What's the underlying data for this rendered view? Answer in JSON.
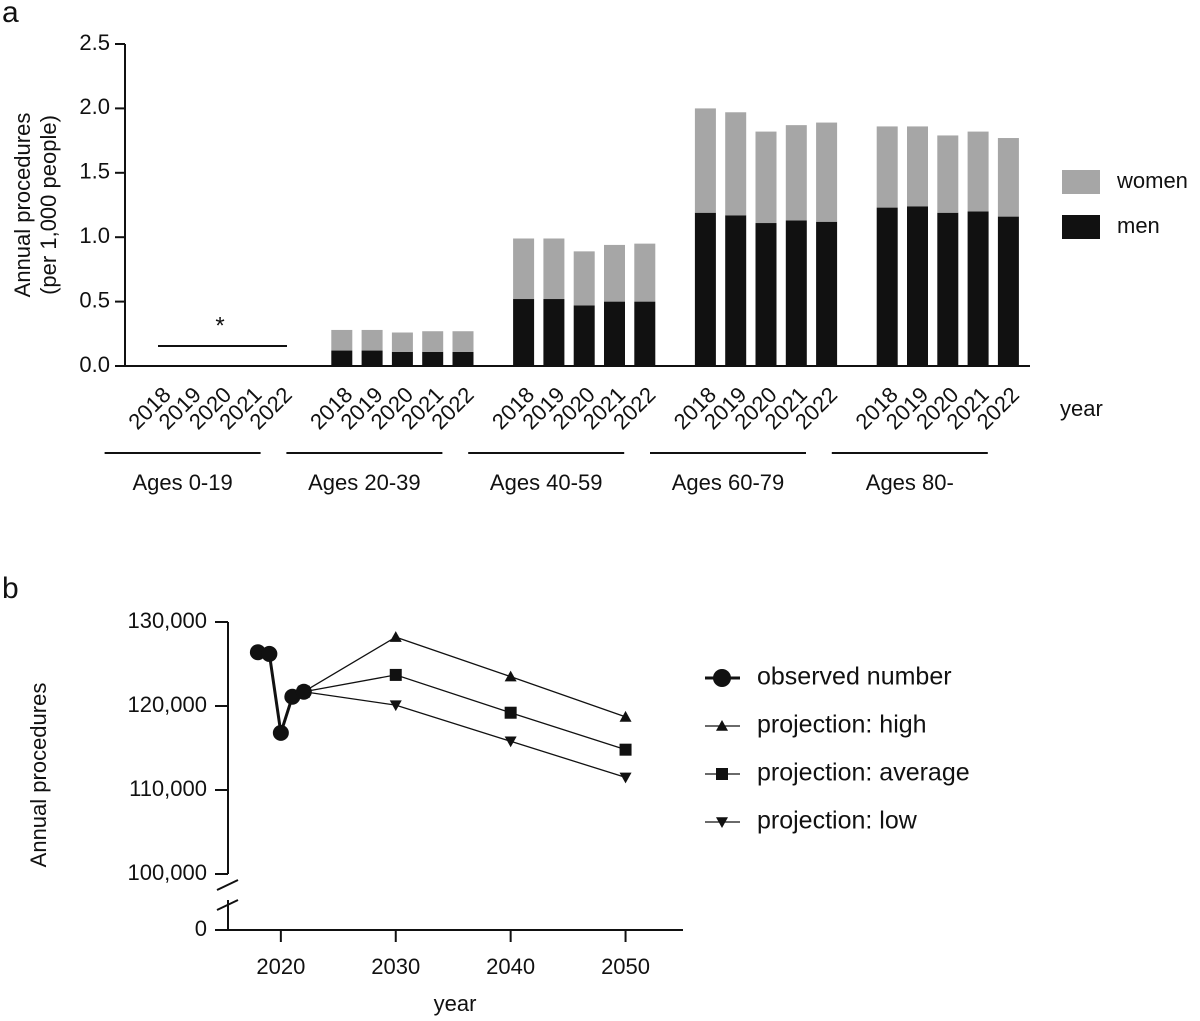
{
  "chart_data": [
    {
      "type": "stacked-bar",
      "panel": "a",
      "ylabel": [
        "Annual procedures",
        "(per 1,000 people)"
      ],
      "xlabel": "year",
      "annotation": "*",
      "categories": [
        "2018",
        "2019",
        "2020",
        "2021",
        "2022",
        "2018",
        "2019",
        "2020",
        "2021",
        "2022",
        "2018",
        "2019",
        "2020",
        "2021",
        "2022",
        "2018",
        "2019",
        "2020",
        "2021",
        "2022",
        "2018",
        "2019",
        "2020",
        "2021",
        "2022"
      ],
      "groups": [
        "Ages 0-19",
        "Ages 20-39",
        "Ages 40-59",
        "Ages 60-79",
        "Ages 80-"
      ],
      "series": [
        {
          "name": "men",
          "color": "#111111",
          "values": [
            0,
            0,
            0,
            0,
            0,
            0.12,
            0.12,
            0.11,
            0.11,
            0.11,
            0.52,
            0.52,
            0.47,
            0.5,
            0.5,
            1.19,
            1.17,
            1.11,
            1.13,
            1.12,
            1.23,
            1.24,
            1.19,
            1.2,
            1.16
          ]
        },
        {
          "name": "women",
          "color": "#a6a6a6",
          "values": [
            0,
            0,
            0,
            0,
            0,
            0.16,
            0.16,
            0.15,
            0.16,
            0.16,
            0.47,
            0.47,
            0.42,
            0.44,
            0.45,
            0.81,
            0.8,
            0.71,
            0.74,
            0.77,
            0.63,
            0.62,
            0.6,
            0.62,
            0.61
          ]
        }
      ],
      "ylim": [
        0,
        2.5
      ],
      "yticks": [
        {
          "value": 0,
          "label": "0.0"
        },
        0.5,
        {
          "value": 1,
          "label": "1.0"
        },
        1.5,
        {
          "value": 2,
          "label": "2.0"
        },
        2.5
      ]
    },
    {
      "type": "line",
      "panel": "b",
      "ylabel": "Annual procedures",
      "xlabel": "year",
      "series": [
        {
          "name": "observed number",
          "marker": "circle",
          "color": "#111111",
          "x": [
            2018,
            2019,
            2020,
            2021,
            2022
          ],
          "values": [
            126400,
            126200,
            116800,
            121100,
            121700
          ]
        },
        {
          "name": "projection: high",
          "marker": "triangle-up",
          "color": "#111111",
          "x": [
            2022,
            2030,
            2040,
            2050
          ],
          "values": [
            121700,
            128200,
            123500,
            118700
          ]
        },
        {
          "name": "projection: average",
          "marker": "square",
          "color": "#111111",
          "x": [
            2022,
            2030,
            2040,
            2050
          ],
          "values": [
            121700,
            123700,
            119200,
            114800
          ]
        },
        {
          "name": "projection: low",
          "marker": "triangle-down",
          "color": "#111111",
          "x": [
            2022,
            2030,
            2040,
            2050
          ],
          "values": [
            121700,
            120100,
            115800,
            111500
          ]
        }
      ],
      "xlim": [
        2015.4,
        2055
      ],
      "xticks": [
        2020,
        2030,
        2040,
        2050
      ],
      "ylim": [
        100000,
        130000
      ],
      "yticks": [
        {
          "value": 100000,
          "label": "100,000"
        },
        {
          "value": 110000,
          "label": "110,000"
        },
        {
          "value": 120000,
          "label": "120,000"
        },
        {
          "value": 130000,
          "label": "130,000"
        }
      ],
      "ybreak_ticks": [
        0
      ]
    }
  ]
}
